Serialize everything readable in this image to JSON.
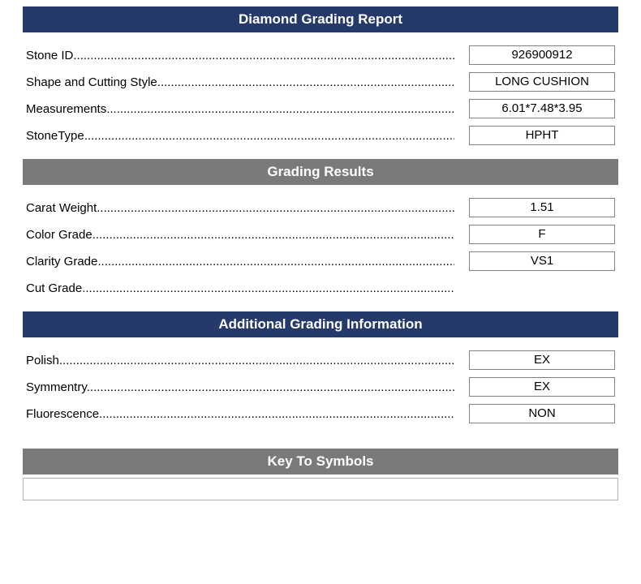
{
  "colors": {
    "navy": "#253a6a",
    "gray": "#7a7a7a",
    "border": "#808080",
    "text": "#000000",
    "header_text": "#ffffff",
    "background": "#ffffff"
  },
  "sections": {
    "report": {
      "title": "Diamond Grading Report",
      "header_style": "navy",
      "rows": [
        {
          "label": "Stone ID",
          "value": "926900912"
        },
        {
          "label": "Shape and Cutting Style",
          "value": "LONG CUSHION"
        },
        {
          "label": "Measurements",
          "value": "6.01*7.48*3.95"
        },
        {
          "label": "StoneType",
          "value": "HPHT"
        }
      ]
    },
    "grading": {
      "title": "Grading Results",
      "header_style": "gray",
      "rows": [
        {
          "label": "Carat Weight",
          "value": "1.51"
        },
        {
          "label": "Color Grade",
          "value": "F"
        },
        {
          "label": "Clarity Grade",
          "value": "VS1"
        },
        {
          "label": "Cut Grade",
          "value": ""
        }
      ]
    },
    "additional": {
      "title": "Additional Grading Information",
      "header_style": "navy",
      "rows": [
        {
          "label": "Polish",
          "value": "EX"
        },
        {
          "label": "Symmentry",
          "value": "EX"
        },
        {
          "label": "Fluorescence",
          "value": "NON"
        }
      ]
    },
    "symbols": {
      "title": "Key To Symbols",
      "header_style": "gray"
    }
  }
}
